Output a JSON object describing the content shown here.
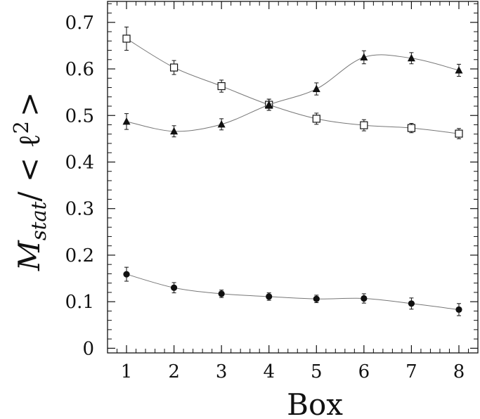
{
  "chart_data": {
    "type": "line",
    "xlabel": "Box",
    "ylabel": {
      "main": "M",
      "subscript": "stat",
      "rest": "/ < ℓ",
      "superscript": "2",
      "close": ">"
    },
    "xlim": [
      0.6,
      8.4
    ],
    "ylim": [
      -0.01,
      0.745
    ],
    "x_ticks": [
      1,
      2,
      3,
      4,
      5,
      6,
      7,
      8
    ],
    "y_ticks": [
      {
        "value": 0,
        "label": "0"
      },
      {
        "value": 0.1,
        "label": "0.1"
      },
      {
        "value": 0.2,
        "label": "0.2"
      },
      {
        "value": 0.3,
        "label": "0.3"
      },
      {
        "value": 0.4,
        "label": "0.4"
      },
      {
        "value": 0.5,
        "label": "0.5"
      },
      {
        "value": 0.6,
        "label": "0.6"
      },
      {
        "value": 0.7,
        "label": "0.7"
      }
    ],
    "grid": false,
    "legend": "none",
    "line_color": "#777777",
    "marker_color": "#111111",
    "series": [
      {
        "marker": "open-square",
        "x": [
          1,
          2,
          3,
          4,
          5,
          6,
          7,
          8
        ],
        "y": [
          0.665,
          0.603,
          0.563,
          0.523,
          0.493,
          0.479,
          0.473,
          0.461
        ],
        "err": [
          0.025,
          0.015,
          0.013,
          0.012,
          0.012,
          0.012,
          0.01,
          0.011
        ]
      },
      {
        "marker": "filled-triangle",
        "x": [
          1,
          2,
          3,
          4,
          5,
          6,
          7,
          8
        ],
        "y": [
          0.487,
          0.466,
          0.481,
          0.523,
          0.557,
          0.625,
          0.623,
          0.597
        ],
        "err": [
          0.017,
          0.012,
          0.012,
          0.012,
          0.013,
          0.014,
          0.012,
          0.013
        ]
      },
      {
        "marker": "filled-circle",
        "x": [
          1,
          2,
          3,
          4,
          5,
          6,
          7,
          8
        ],
        "y": [
          0.159,
          0.13,
          0.117,
          0.111,
          0.106,
          0.107,
          0.096,
          0.083
        ],
        "err": [
          0.015,
          0.011,
          0.008,
          0.008,
          0.008,
          0.01,
          0.012,
          0.013
        ]
      }
    ]
  }
}
